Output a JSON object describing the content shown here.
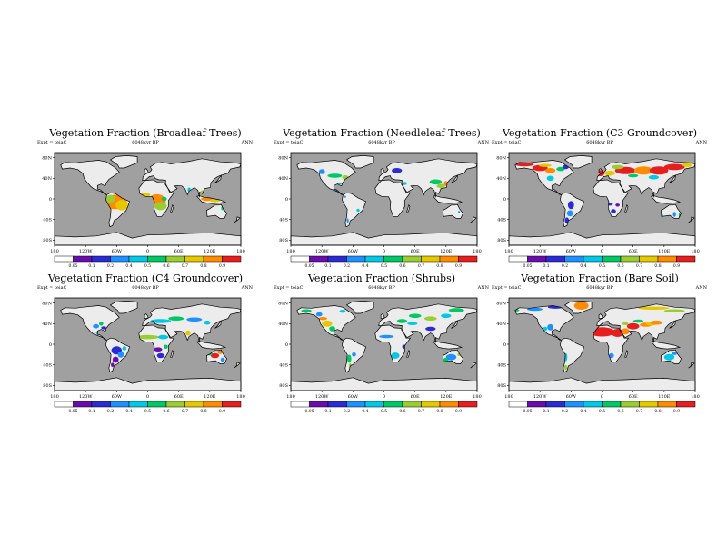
{
  "common": {
    "expt": "Expt = teiaC",
    "period": "ANN",
    "lat_ticks": [
      "80N",
      "40N",
      "0",
      "40S",
      "80S"
    ],
    "lon_ticks": [
      "180",
      "120W",
      "60W",
      "0",
      "60E",
      "120E",
      "180"
    ],
    "colorbar_labels": [
      "0.05",
      "0.1",
      "0.2",
      "0.4",
      "0.5",
      "0.6",
      "0.7",
      "0.8",
      "0.9"
    ],
    "colorbar_colors": [
      "#ffffff",
      "#6a0dad",
      "#2b2bd6",
      "#1e90ff",
      "#00c8e6",
      "#00c864",
      "#9acd32",
      "#e6c800",
      "#ff8c00",
      "#e61e1e"
    ],
    "ocean_color": "#a0a0a0",
    "land_color": "#ececec"
  },
  "panels": [
    {
      "title": "Vegetation Fraction (Broadleaf Trees)",
      "subtitle": "6048kyr BP",
      "variable": "broadleaf"
    },
    {
      "title": "Vegetation Fraction (Needleleaf Trees)",
      "subtitle": "6048kyr BP",
      "variable": "needleleaf"
    },
    {
      "title": "Vegetation Fraction (C3 Groundcover)",
      "subtitle": "6048kyr BP",
      "variable": "c3"
    },
    {
      "title": "Vegetation Fraction (C4 Groundcover)",
      "subtitle": "6048kyr BP",
      "variable": "c4"
    },
    {
      "title": "Vegetation Fraction (Shrubs)",
      "subtitle": "6048kyr BP",
      "variable": "shrubs"
    },
    {
      "title": "Vegetation Fraction (Bare Soil)",
      "subtitle": "6048kyr BP",
      "variable": "baresoil"
    }
  ]
}
